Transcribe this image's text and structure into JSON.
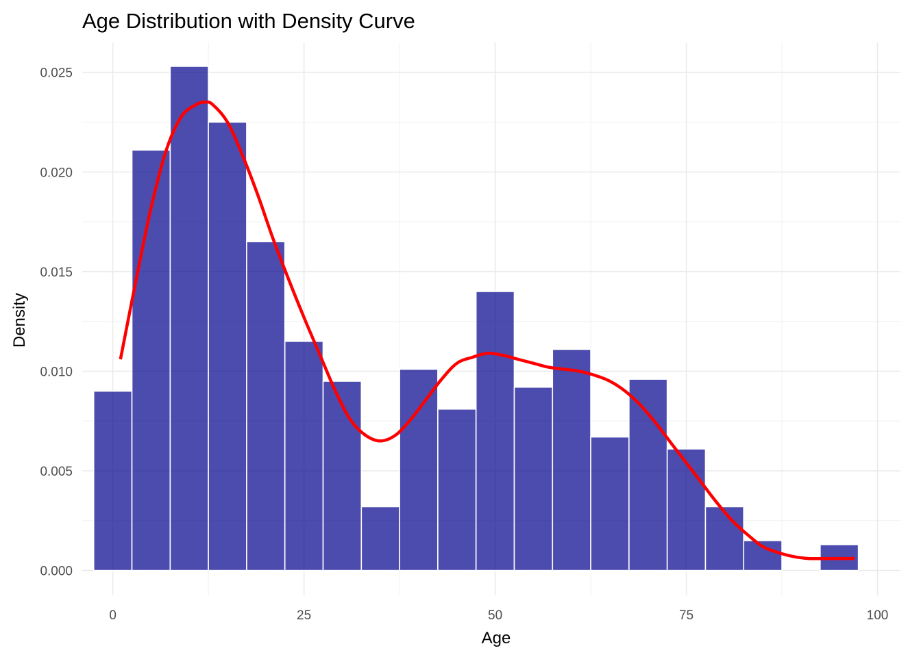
{
  "chart_data": {
    "type": "bar",
    "title": "Age Distribution with Density Curve",
    "xlabel": "Age",
    "ylabel": "Density",
    "xlim": [
      -4,
      103
    ],
    "ylim": [
      -0.00125,
      0.0265
    ],
    "x_ticks": [
      0,
      25,
      50,
      75,
      100
    ],
    "x_tick_labels": [
      "0",
      "25",
      "50",
      "75",
      "100"
    ],
    "y_ticks": [
      0,
      0.005,
      0.01,
      0.015,
      0.02,
      0.025
    ],
    "y_tick_labels": [
      "0.000",
      "0.005",
      "0.010",
      "0.015",
      "0.020",
      "0.025"
    ],
    "grid": true,
    "legend": "none",
    "histogram": {
      "bin_width": 5,
      "bin_centers": [
        0,
        5,
        10,
        15,
        20,
        25,
        30,
        35,
        40,
        45,
        50,
        55,
        60,
        65,
        70,
        75,
        80,
        85,
        90,
        95
      ],
      "values": [
        0.009,
        0.0211,
        0.0253,
        0.0225,
        0.0165,
        0.0115,
        0.0095,
        0.0032,
        0.0101,
        0.0081,
        0.014,
        0.0092,
        0.0111,
        0.0067,
        0.0096,
        0.0061,
        0.0032,
        0.0015,
        0,
        0.0013
      ],
      "fill_color": "#00008b",
      "fill_opacity": 0.7,
      "edge_color": "#ffffff"
    },
    "density_curve": {
      "color": "#ff0000",
      "x": [
        1,
        3,
        5,
        7,
        9,
        11,
        12,
        13,
        15,
        17,
        19,
        21,
        23,
        25,
        27,
        29,
        31,
        33,
        35,
        37,
        39,
        41,
        43,
        45,
        47,
        49,
        51,
        53,
        55,
        57,
        59,
        61,
        63,
        65,
        67,
        69,
        71,
        73,
        75,
        77,
        79,
        81,
        83,
        85,
        87,
        89,
        91,
        93,
        95,
        97
      ],
      "y": [
        0.0106,
        0.0145,
        0.0182,
        0.0211,
        0.0228,
        0.0234,
        0.0235,
        0.0234,
        0.0225,
        0.0208,
        0.0188,
        0.0166,
        0.0146,
        0.0127,
        0.0109,
        0.0091,
        0.0076,
        0.0068,
        0.0065,
        0.0068,
        0.0076,
        0.0086,
        0.0096,
        0.0104,
        0.0107,
        0.0109,
        0.0108,
        0.0106,
        0.0104,
        0.0102,
        0.0101,
        0.01,
        0.0098,
        0.0095,
        0.009,
        0.0083,
        0.0074,
        0.0064,
        0.0054,
        0.0044,
        0.0034,
        0.0025,
        0.0018,
        0.0012,
        0.0009,
        0.0007,
        0.0006,
        0.0006,
        0.0006,
        0.0006
      ]
    }
  }
}
